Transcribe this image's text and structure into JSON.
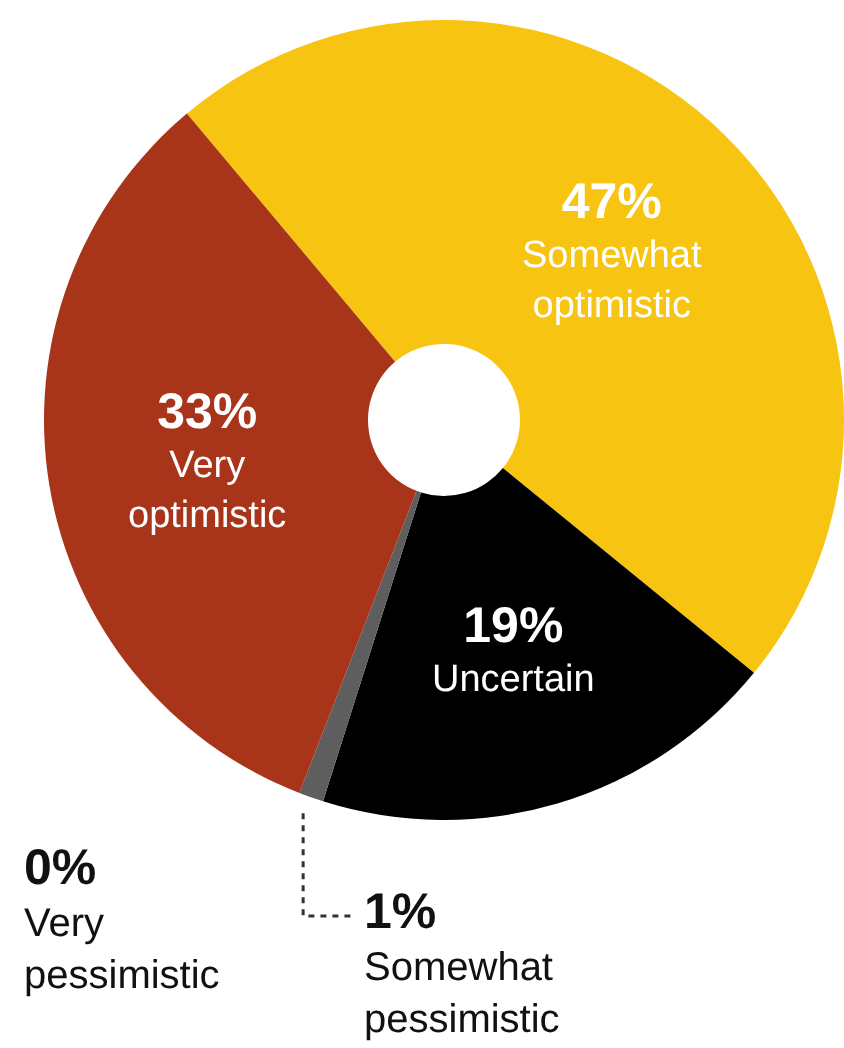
{
  "chart_data": {
    "type": "donut",
    "categories": [
      "Somewhat optimistic",
      "Uncertain",
      "Somewhat pessimistic",
      "Very pessimistic",
      "Very optimistic"
    ],
    "values": [
      47,
      19,
      1,
      0,
      33
    ],
    "colors": [
      "#f7c412",
      "#000000",
      "#5e5e5e",
      "#9a9a9a",
      "#a8351a"
    ],
    "value_labels": [
      "47%",
      "19%",
      "1%",
      "0%",
      "33%"
    ],
    "legend": false
  }
}
